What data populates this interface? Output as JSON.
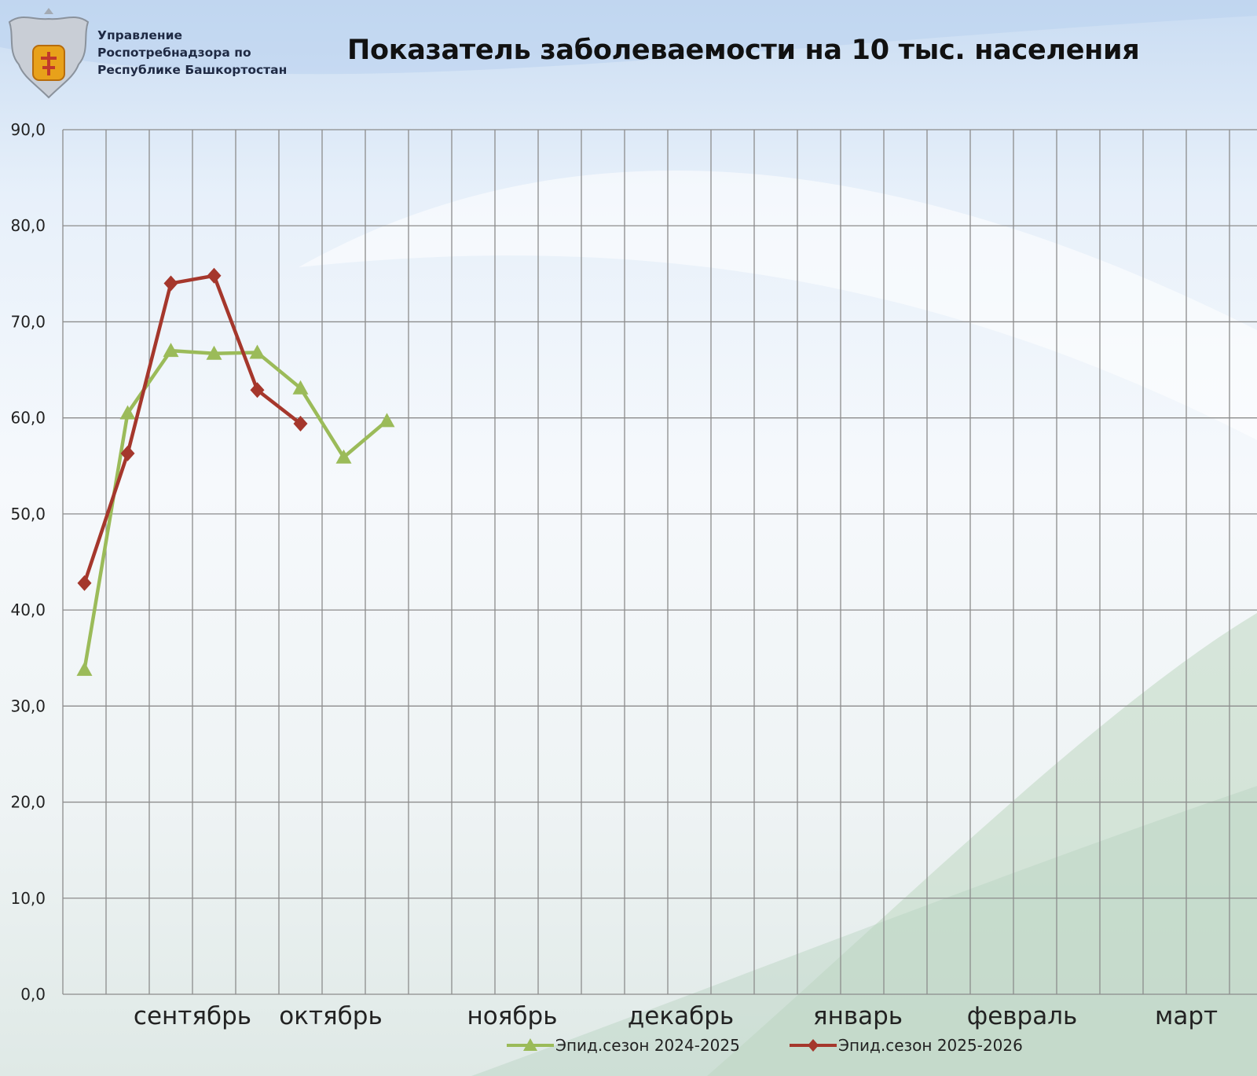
{
  "header": {
    "org_lines": [
      "Управление",
      "Роспотребнадзора по",
      "Республике Башкортостан"
    ],
    "title": "Показатель заболеваемости на 10 тыс. населения"
  },
  "colors": {
    "series_2024": "#9bbb59",
    "series_2025": "#a5372c",
    "grid": "#8c8c8c",
    "axis_text": "#222222"
  },
  "chart_data": {
    "type": "line",
    "title": "Показатель заболеваемости на 10 тыс. населения",
    "ylim": [
      0,
      90
    ],
    "y_ticks": [
      "0,0",
      "10,0",
      "20,0",
      "30,0",
      "40,0",
      "50,0",
      "60,0",
      "70,0",
      "80,0",
      "90,0"
    ],
    "x_month_labels": [
      "сентябрь",
      "октябрь",
      "ноябрь",
      "декабрь",
      "январь",
      "февраль",
      "март"
    ],
    "week_slots": 28,
    "grid": true,
    "legend_position": "bottom",
    "series": [
      {
        "name": "Эпид.сезон 2024-2025",
        "marker": "triangle",
        "color": "#9bbb59",
        "values": [
          33.8,
          60.5,
          67.0,
          66.7,
          66.8,
          63.1,
          55.9,
          59.7
        ]
      },
      {
        "name": "Эпид.сезон 2025-2026",
        "marker": "diamond",
        "color": "#a5372c",
        "values": [
          42.8,
          56.3,
          74.0,
          74.8,
          62.9,
          59.4
        ]
      }
    ]
  }
}
